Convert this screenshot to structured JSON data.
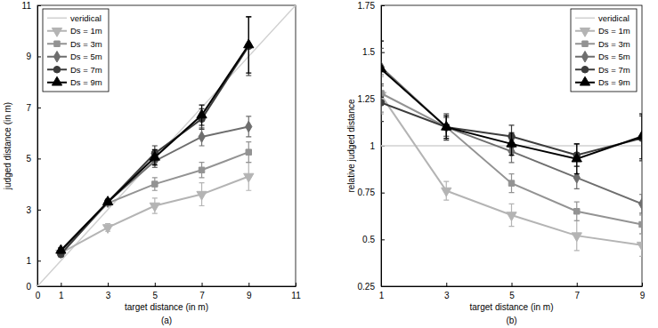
{
  "chart_data": [
    {
      "type": "line",
      "title": "(a)",
      "xlabel": "target distance (in m)",
      "ylabel": "judged distance (in m)",
      "x": [
        1,
        3,
        5,
        7,
        9
      ],
      "xlim": [
        0,
        11
      ],
      "xticks": [
        0,
        1,
        3,
        5,
        7,
        9,
        11
      ],
      "ylim": [
        0,
        11
      ],
      "yticks": [
        0,
        1,
        3,
        5,
        7,
        9,
        11
      ],
      "grid": false,
      "legend": "upper left",
      "series": [
        {
          "name": "veridical",
          "color": "#d0d0d0",
          "marker": "none",
          "x": [
            0,
            11
          ],
          "values": [
            0,
            11
          ]
        },
        {
          "name": "Ds = 1m",
          "color": "#b4b4b4",
          "marker": "triangle-down",
          "values": [
            1.3,
            2.3,
            3.15,
            3.6,
            4.3
          ],
          "errors": [
            0.1,
            0.15,
            0.3,
            0.45,
            0.55
          ]
        },
        {
          "name": "Ds = 3m",
          "color": "#939393",
          "marker": "square",
          "values": [
            1.3,
            3.25,
            4.0,
            4.55,
            5.25
          ],
          "errors": [
            0.1,
            0.1,
            0.25,
            0.3,
            0.4
          ]
        },
        {
          "name": "Ds = 5m",
          "color": "#6e6e6e",
          "marker": "diamond",
          "values": [
            1.4,
            3.3,
            4.9,
            5.85,
            6.25
          ],
          "errors": [
            0.1,
            0.1,
            0.25,
            0.35,
            0.4
          ]
        },
        {
          "name": "Ds = 7m",
          "color": "#3c3c3c",
          "marker": "circle",
          "values": [
            1.25,
            3.3,
            5.2,
            6.55,
            9.4
          ],
          "errors": [
            0.1,
            0.1,
            0.3,
            0.4,
            1.15
          ]
        },
        {
          "name": "Ds = 9m",
          "color": "#000000",
          "marker": "triangle-up",
          "values": [
            1.4,
            3.3,
            5.05,
            6.7,
            9.45
          ],
          "errors": [
            0.1,
            0.1,
            0.3,
            0.4,
            1.1
          ]
        }
      ]
    },
    {
      "type": "line",
      "title": "(b)",
      "xlabel": "target distance (in m)",
      "ylabel": "relative judged distance",
      "x": [
        1,
        3,
        5,
        7,
        9
      ],
      "xlim": [
        1,
        9
      ],
      "xticks": [
        1,
        3,
        5,
        7,
        9
      ],
      "ylim": [
        0.25,
        1.75
      ],
      "yticks": [
        0.25,
        0.5,
        0.75,
        1,
        1.25,
        1.5,
        1.75
      ],
      "grid": false,
      "legend": "upper right",
      "series": [
        {
          "name": "veridical",
          "color": "#d0d0d0",
          "marker": "none",
          "x": [
            1,
            9
          ],
          "values": [
            1,
            1
          ]
        },
        {
          "name": "Ds = 1m",
          "color": "#b4b4b4",
          "marker": "triangle-down",
          "values": [
            1.27,
            0.76,
            0.63,
            0.52,
            0.47
          ],
          "errors": [
            0.1,
            0.05,
            0.06,
            0.08,
            0.06
          ]
        },
        {
          "name": "Ds = 3m",
          "color": "#939393",
          "marker": "square",
          "values": [
            1.28,
            1.1,
            0.8,
            0.65,
            0.58
          ],
          "errors": [
            0.1,
            0.05,
            0.05,
            0.05,
            0.05
          ]
        },
        {
          "name": "Ds = 5m",
          "color": "#6e6e6e",
          "marker": "diamond",
          "values": [
            1.42,
            1.1,
            0.97,
            0.83,
            0.69
          ],
          "errors": [
            0.1,
            0.05,
            0.06,
            0.06,
            0.05
          ]
        },
        {
          "name": "Ds = 7m",
          "color": "#3c3c3c",
          "marker": "circle",
          "values": [
            1.23,
            1.1,
            1.05,
            0.95,
            1.04
          ],
          "errors": [
            0.1,
            0.07,
            0.06,
            0.06,
            0.12
          ]
        },
        {
          "name": "Ds = 9m",
          "color": "#000000",
          "marker": "triangle-up",
          "values": [
            1.41,
            1.1,
            1.01,
            0.93,
            1.05
          ],
          "errors": [
            0.15,
            0.06,
            0.06,
            0.08,
            0.12
          ]
        }
      ]
    }
  ]
}
